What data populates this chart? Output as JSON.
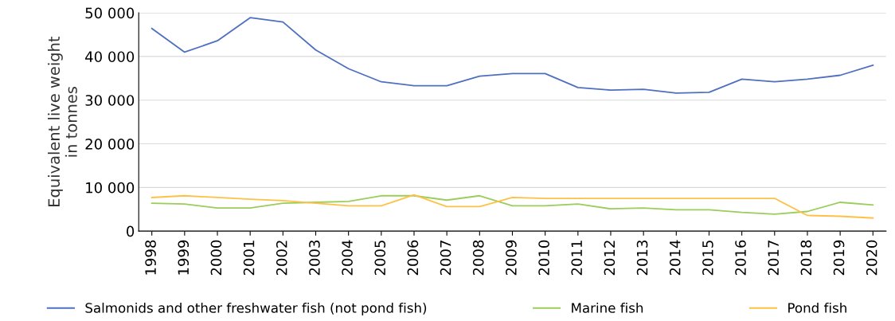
{
  "chart_data": {
    "type": "line",
    "ylabel": "Equivalent live weight\nin tonnes",
    "categories": [
      "1998",
      "1999",
      "2000",
      "2001",
      "2002",
      "2003",
      "2004",
      "2005",
      "2006",
      "2007",
      "2008",
      "2009",
      "2010",
      "2011",
      "2012",
      "2013",
      "2014",
      "2015",
      "2016",
      "2017",
      "2018",
      "2019",
      "2020"
    ],
    "series": [
      {
        "name": "Salmonids and other freshwater fish (not pond fish)",
        "color": "#4f6fc0",
        "values": [
          46400,
          41000,
          43600,
          48900,
          47900,
          41500,
          37200,
          34200,
          33300,
          33300,
          35500,
          36100,
          36100,
          32900,
          32300,
          32500,
          31600,
          31800,
          34800,
          34200,
          34800,
          35700,
          38000
        ]
      },
      {
        "name": "Marine fish",
        "color": "#9acd5a",
        "values": [
          6400,
          6200,
          5300,
          5300,
          6400,
          6600,
          6800,
          8100,
          8100,
          7100,
          8100,
          5800,
          5800,
          6200,
          5100,
          5300,
          4900,
          4900,
          4300,
          3900,
          4500,
          6600,
          6000
        ]
      },
      {
        "name": "Pond fish",
        "color": "#ffc145",
        "values": [
          7700,
          8100,
          7700,
          7300,
          7000,
          6400,
          5800,
          5800,
          8300,
          5600,
          5600,
          7700,
          7500,
          7500,
          7500,
          7500,
          7500,
          7500,
          7500,
          7500,
          3600,
          3400,
          3000
        ]
      }
    ],
    "ylim": [
      0,
      50000
    ],
    "yticks": [
      {
        "value": 0,
        "label": "0"
      },
      {
        "value": 10000,
        "label": "10 000"
      },
      {
        "value": 20000,
        "label": "20 000"
      },
      {
        "value": 30000,
        "label": "30 000"
      },
      {
        "value": 40000,
        "label": "40 000"
      },
      {
        "value": 50000,
        "label": "50 000"
      }
    ],
    "grid": "y",
    "legend": "bottom",
    "marker": "none",
    "line_style": "solid"
  }
}
